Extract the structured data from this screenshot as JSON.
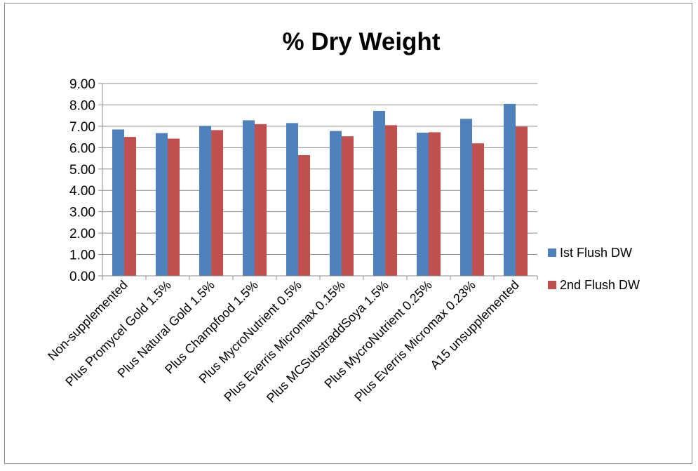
{
  "chart_data": {
    "type": "bar",
    "title": "% Dry Weight",
    "xlabel": "",
    "ylabel": "",
    "ylim": [
      0,
      9
    ],
    "ytick_step": 1,
    "ytick_labels": [
      "0.00",
      "1.00",
      "2.00",
      "3.00",
      "4.00",
      "5.00",
      "6.00",
      "7.00",
      "8.00",
      "9.00"
    ],
    "grid": true,
    "legend_position": "right",
    "categories": [
      "Non-supplemented",
      "Plus Promycel Gold 1.5%",
      "Plus Natural Gold 1.5%",
      "Plus  Champfood 1.5%",
      "Plus MycroNutrient 0.5%",
      "Plus  Everris Micromax 0.15%",
      "Plus MCSubstraddSoya 1.5%",
      "Plus MycroNutrient 0.25%",
      "Plus Everris Micromax 0.23%",
      "A15 unsupplemented"
    ],
    "series": [
      {
        "name": "Ist Flush DW",
        "color": "#4f81bd",
        "values": [
          6.85,
          6.68,
          7.02,
          7.28,
          7.15,
          6.78,
          7.72,
          6.7,
          7.35,
          8.05
        ]
      },
      {
        "name": "2nd Flush DW",
        "color": "#c0504d",
        "values": [
          6.5,
          6.42,
          6.82,
          7.1,
          5.65,
          6.53,
          7.05,
          6.72,
          6.2,
          6.98
        ]
      }
    ]
  }
}
